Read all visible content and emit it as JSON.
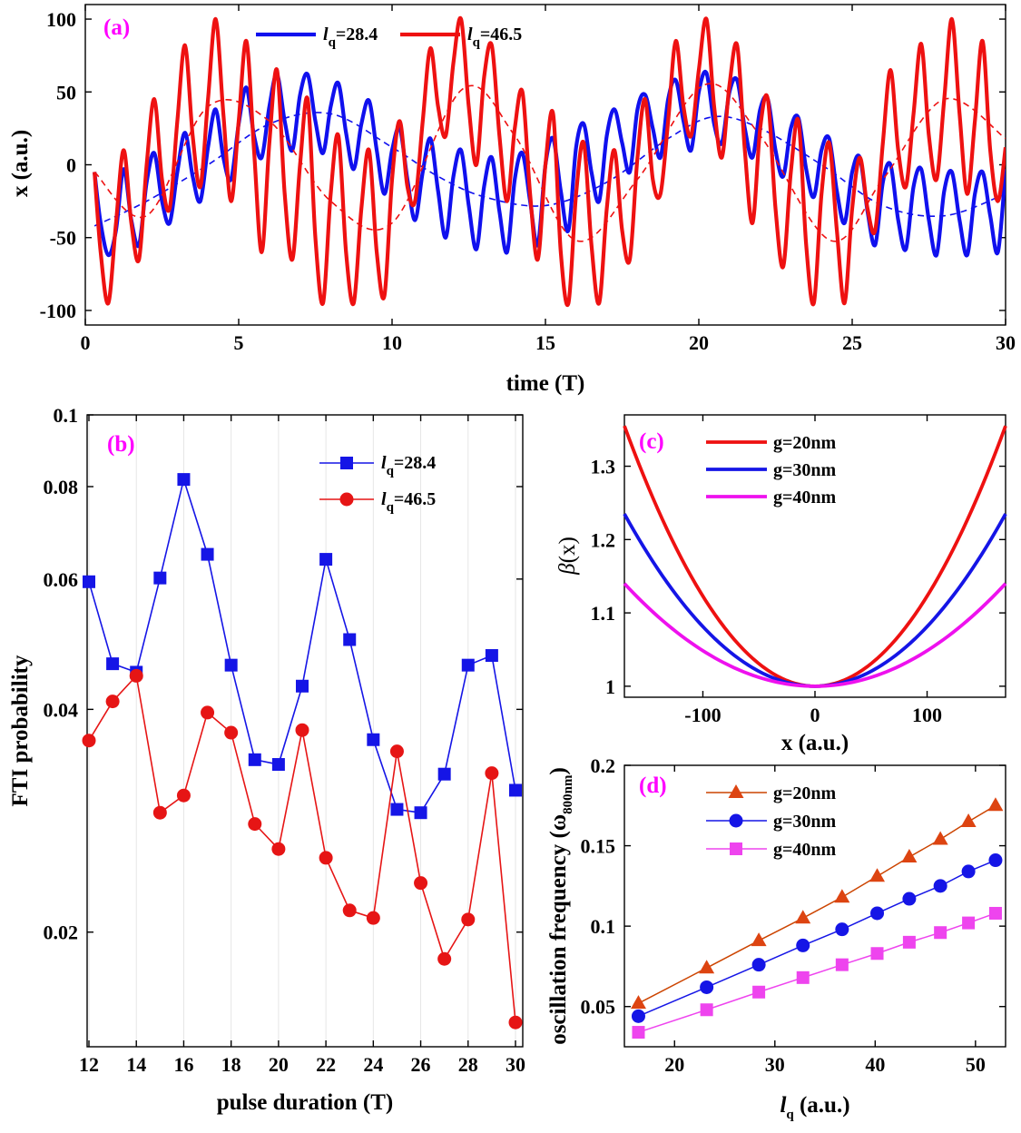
{
  "chart_data": [
    {
      "panel": "(a)",
      "type": "line",
      "xlabel": "time (T)",
      "ylabel": "x (a.u.)",
      "xlim": [
        0,
        30
      ],
      "ylim": [
        -110,
        110
      ],
      "xticks": [
        0,
        5,
        10,
        15,
        20,
        25,
        30
      ],
      "yticks": [
        -100,
        -50,
        0,
        50,
        100
      ],
      "legend_placement": "top-left",
      "series": [
        {
          "name": "l_q=28.4",
          "legend_main": "l",
          "legend_sub": "q",
          "legend_rest": "=28.4",
          "color": "#1010ee",
          "x": [
            0.3,
            0.5,
            0.75,
            1.0,
            1.25,
            1.5,
            1.75,
            2.0,
            2.25,
            2.5,
            2.75,
            3.0,
            3.25,
            3.5,
            3.75,
            4.0,
            4.25,
            4.5,
            4.75,
            5.0,
            5.25,
            5.5,
            5.75,
            6.0,
            6.25,
            6.5,
            6.75,
            7.0,
            7.25,
            7.5,
            7.75,
            8.0,
            8.25,
            8.5,
            8.75,
            9.0,
            9.25,
            9.5,
            9.75,
            10.0,
            10.25,
            10.5,
            10.75,
            11.0,
            11.25,
            11.5,
            11.75,
            12.0,
            12.25,
            12.5,
            12.75,
            13.0,
            13.25,
            13.5,
            13.75,
            14.0,
            14.25,
            14.5,
            14.75,
            15.0,
            15.25,
            15.5,
            15.75,
            16.0,
            16.25,
            16.5,
            16.75,
            17.0,
            17.25,
            17.5,
            17.75,
            18.0,
            18.25,
            18.5,
            18.75,
            19.0,
            19.25,
            19.5,
            19.75,
            20.0,
            20.25,
            20.5,
            20.75,
            21.0,
            21.25,
            21.5,
            21.75,
            22.0,
            22.25,
            22.5,
            22.75,
            23.0,
            23.25,
            23.5,
            23.75,
            24.0,
            24.25,
            24.5,
            24.75,
            25.0,
            25.25,
            25.5,
            25.75,
            26.0,
            26.25,
            26.5,
            26.75,
            27.0,
            27.25,
            27.5,
            27.75,
            28.0,
            28.25,
            28.5,
            28.75,
            29.0,
            29.25,
            29.5,
            29.75,
            30.0
          ],
          "y": [
            -5,
            -40,
            -62,
            -45,
            -3,
            -38,
            -55,
            -12,
            8,
            -25,
            -40,
            -5,
            22,
            -8,
            -25,
            12,
            38,
            5,
            -10,
            28,
            53,
            20,
            5,
            40,
            62,
            30,
            10,
            48,
            62,
            30,
            8,
            40,
            56,
            22,
            -3,
            28,
            44,
            10,
            -20,
            10,
            25,
            -10,
            -38,
            -5,
            18,
            -18,
            -50,
            -8,
            10,
            -28,
            -58,
            -15,
            5,
            -32,
            -60,
            -10,
            8,
            -25,
            -55,
            0,
            18,
            -18,
            -45,
            12,
            28,
            -5,
            -25,
            20,
            38,
            15,
            -5,
            38,
            48,
            25,
            5,
            45,
            58,
            30,
            10,
            50,
            63,
            28,
            15,
            50,
            58,
            25,
            5,
            38,
            45,
            10,
            -8,
            25,
            32,
            -3,
            -22,
            10,
            18,
            -18,
            -40,
            -5,
            5,
            -32,
            -55,
            -12,
            0,
            -38,
            -58,
            -15,
            -3,
            -38,
            -62,
            -18,
            -5,
            -38,
            -62,
            -20,
            -5,
            -35,
            -60,
            -3
          ],
          "trend_x": [
            0.3,
            2,
            4,
            6,
            8,
            10,
            11.5,
            13,
            15,
            17,
            19,
            20.5,
            22,
            24,
            26,
            28,
            30
          ],
          "trend_y": [
            -42,
            -25,
            0,
            28,
            35,
            12,
            -8,
            -22,
            -28,
            -12,
            18,
            33,
            25,
            0,
            -28,
            -35,
            -20
          ]
        },
        {
          "name": "l_q=46.5",
          "legend_main": "l",
          "legend_sub": "q",
          "legend_rest": "=46.5",
          "color": "#ee1111",
          "x": [
            0.3,
            0.5,
            0.75,
            1.0,
            1.25,
            1.5,
            1.75,
            2.0,
            2.25,
            2.5,
            2.75,
            3.0,
            3.25,
            3.5,
            3.75,
            4.0,
            4.25,
            4.5,
            4.75,
            5.0,
            5.25,
            5.5,
            5.75,
            6.0,
            6.25,
            6.5,
            6.75,
            7.0,
            7.25,
            7.5,
            7.75,
            8.0,
            8.25,
            8.5,
            8.75,
            9.0,
            9.25,
            9.5,
            9.75,
            10.0,
            10.25,
            10.5,
            10.75,
            11.0,
            11.25,
            11.5,
            11.75,
            12.0,
            12.25,
            12.5,
            12.75,
            13.0,
            13.25,
            13.5,
            13.75,
            14.0,
            14.25,
            14.5,
            14.75,
            15.0,
            15.25,
            15.5,
            15.75,
            16.0,
            16.25,
            16.5,
            16.75,
            17.0,
            17.25,
            17.5,
            17.75,
            18.0,
            18.25,
            18.5,
            18.75,
            19.0,
            19.25,
            19.5,
            19.75,
            20.0,
            20.25,
            20.5,
            20.75,
            21.0,
            21.25,
            21.5,
            21.75,
            22.0,
            22.25,
            22.5,
            22.75,
            23.0,
            23.25,
            23.5,
            23.75,
            24.0,
            24.25,
            24.5,
            24.75,
            25.0,
            25.25,
            25.5,
            25.75,
            26.0,
            26.25,
            26.5,
            26.75,
            27.0,
            27.25,
            27.5,
            27.75,
            28.0,
            28.25,
            28.5,
            28.75,
            29.0,
            29.25,
            29.5,
            29.75,
            30.0
          ],
          "y": [
            -5,
            -60,
            -95,
            -40,
            10,
            -40,
            -65,
            0,
            45,
            -10,
            -30,
            30,
            82,
            20,
            -15,
            45,
            100,
            35,
            -25,
            30,
            85,
            10,
            -60,
            15,
            65,
            -20,
            -65,
            0,
            45,
            -50,
            -95,
            -20,
            20,
            -60,
            -95,
            -30,
            10,
            -60,
            -90,
            -10,
            30,
            -15,
            -25,
            30,
            80,
            40,
            20,
            70,
            100,
            40,
            0,
            60,
            82,
            20,
            -25,
            25,
            50,
            -20,
            -65,
            0,
            35,
            -60,
            -95,
            -20,
            15,
            -55,
            -95,
            -30,
            10,
            -45,
            -65,
            5,
            45,
            -10,
            -20,
            30,
            85,
            40,
            20,
            65,
            100,
            40,
            5,
            55,
            82,
            10,
            -40,
            25,
            45,
            -30,
            -70,
            -5,
            30,
            -55,
            -95,
            -20,
            15,
            -45,
            -95,
            -30,
            5,
            -30,
            -45,
            15,
            65,
            10,
            -15,
            35,
            83,
            20,
            -10,
            45,
            100,
            35,
            -20,
            30,
            85,
            10,
            -25,
            12
          ],
          "trend_x": [
            0.3,
            2,
            4,
            6,
            8,
            10,
            12.3,
            14,
            16,
            18,
            20.2,
            22,
            24.3,
            26,
            28,
            30
          ],
          "trend_y": [
            -5,
            -35,
            40,
            30,
            -25,
            -40,
            52,
            20,
            -52,
            -10,
            55,
            20,
            -52,
            -10,
            45,
            18
          ]
        }
      ]
    },
    {
      "panel": "(b)",
      "type": "line",
      "xlabel": "pulse duration (T)",
      "ylabel": "FTI probability",
      "xlim": [
        12,
        30
      ],
      "ylim": [
        0.014,
        0.1
      ],
      "yscale": "log",
      "xticks": [
        12,
        14,
        16,
        18,
        20,
        22,
        24,
        26,
        28,
        30
      ],
      "yticks": [
        0.02,
        0.04,
        0.06,
        0.08,
        0.1
      ],
      "ytick_labels": [
        "0.02",
        "0.04",
        "0.06",
        "0.08",
        "0.1"
      ],
      "grid": true,
      "legend_placement": "top-right",
      "series": [
        {
          "name": "l_q=28.4",
          "legend_main": "l",
          "legend_sub": "q",
          "legend_rest": "=28.4",
          "color": "#1515e6",
          "marker": "square",
          "x": [
            12,
            13,
            14,
            15,
            16,
            17,
            18,
            19,
            20,
            21,
            22,
            23,
            24,
            25,
            26,
            27,
            28,
            29,
            30
          ],
          "y": [
            0.0595,
            0.0461,
            0.0449,
            0.0602,
            0.0818,
            0.0648,
            0.0459,
            0.0342,
            0.0337,
            0.043,
            0.0638,
            0.0497,
            0.0364,
            0.0293,
            0.029,
            0.0327,
            0.0459,
            0.0473,
            0.0311
          ]
        },
        {
          "name": "l_q=46.5",
          "legend_main": "l",
          "legend_sub": "q",
          "legend_rest": "=46.5",
          "color": "#e61515",
          "marker": "circle",
          "x": [
            12,
            13,
            14,
            15,
            16,
            17,
            18,
            19,
            20,
            21,
            22,
            23,
            24,
            25,
            26,
            27,
            28,
            29,
            30
          ],
          "y": [
            0.0363,
            0.041,
            0.0444,
            0.029,
            0.0306,
            0.0396,
            0.0372,
            0.028,
            0.0259,
            0.0375,
            0.0252,
            0.0214,
            0.0209,
            0.0351,
            0.0233,
            0.0184,
            0.0208,
            0.0328,
            0.0151
          ]
        }
      ]
    },
    {
      "panel": "(c)",
      "type": "line",
      "xlabel": "x (a.u.)",
      "ylabel_main": "β",
      "ylabel_rest": "(x)",
      "xlim": [
        -170,
        170
      ],
      "ylim": [
        0.985,
        1.37
      ],
      "xticks": [
        -100,
        0,
        100
      ],
      "yticks": [
        1,
        1.1,
        1.2,
        1.3
      ],
      "ytick_labels": [
        "1",
        "1.1",
        "1.2",
        "1.3"
      ],
      "legend_placement": "top-left",
      "series": [
        {
          "name": "g=20nm",
          "color": "#ee1111",
          "curvature": 0.355
        },
        {
          "name": "g=30nm",
          "color": "#1515e6",
          "curvature": 0.235
        },
        {
          "name": "g=40nm",
          "color": "#ee11ee",
          "curvature": 0.14
        }
      ]
    },
    {
      "panel": "(d)",
      "type": "line",
      "xlabel_main": "l",
      "xlabel_sub": "q",
      "xlabel_rest": " (a.u.)",
      "ylabel_main": "oscillation frequency (ω",
      "ylabel_sub": "800nm",
      "ylabel_rest": ")",
      "xlim": [
        15,
        53
      ],
      "ylim": [
        0.025,
        0.2
      ],
      "xticks": [
        20,
        30,
        40,
        50
      ],
      "yticks": [
        0.05,
        0.1,
        0.15,
        0.2
      ],
      "ytick_labels": [
        "0.05",
        "0.1",
        "0.15",
        "0.2"
      ],
      "legend_placement": "top-left",
      "series": [
        {
          "name": "g=20nm",
          "color": "#cc4400",
          "fill": "#dd4411",
          "marker": "triangle",
          "x": [
            16.4,
            23.2,
            28.4,
            32.8,
            36.7,
            40.2,
            43.4,
            46.5,
            49.3,
            52.0
          ],
          "y": [
            0.052,
            0.074,
            0.091,
            0.105,
            0.118,
            0.131,
            0.143,
            0.154,
            0.165,
            0.175
          ]
        },
        {
          "name": "g=30nm",
          "color": "#1515e6",
          "fill": "#1515e6",
          "marker": "circle",
          "x": [
            16.4,
            23.2,
            28.4,
            32.8,
            36.7,
            40.2,
            43.4,
            46.5,
            49.3,
            52.0
          ],
          "y": [
            0.044,
            0.062,
            0.076,
            0.088,
            0.098,
            0.108,
            0.117,
            0.125,
            0.134,
            0.141
          ]
        },
        {
          "name": "g=40nm",
          "color": "#ee44ee",
          "fill": "#ee44ee",
          "marker": "square",
          "x": [
            16.4,
            23.2,
            28.4,
            32.8,
            36.7,
            40.2,
            43.4,
            46.5,
            49.3,
            52.0
          ],
          "y": [
            0.034,
            0.048,
            0.059,
            0.068,
            0.076,
            0.083,
            0.09,
            0.096,
            0.102,
            0.108
          ]
        }
      ]
    }
  ]
}
